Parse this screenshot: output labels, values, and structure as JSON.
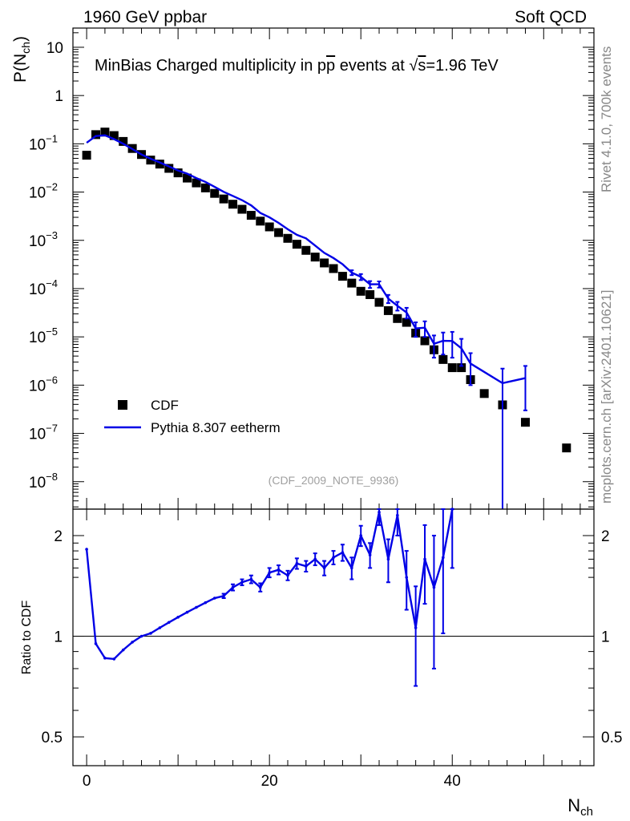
{
  "header": {
    "left": "1960 GeV ppbar",
    "right": "Soft QCD"
  },
  "side": {
    "rivet": "Rivet 4.1.0,  700k events",
    "mcplots": "mcplots.cern.ch [arXiv:2401.10621]"
  },
  "chart_data": [
    {
      "id": "main",
      "type": "scatter",
      "title_parts": {
        "before": "MinBias Charged multiplicity in p",
        "pbar": "p",
        "mid": " events at ",
        "root": "√",
        "s": "s",
        "after": "=1.96 TeV"
      },
      "ylabel_main": "P(N",
      "ylabel_sub": "ch",
      "ylabel_close": ")",
      "yscale": "log",
      "ylim": [
        2.7e-09,
        25
      ],
      "xlim": [
        -1.5,
        55.5
      ],
      "y_ticks": [
        {
          "value": 10,
          "base": "10",
          "exp": ""
        },
        {
          "value": 1,
          "base": "1",
          "exp": ""
        },
        {
          "value": 0.1,
          "base": "10",
          "exp": "−1"
        },
        {
          "value": 0.01,
          "base": "10",
          "exp": "−2"
        },
        {
          "value": 0.001,
          "base": "10",
          "exp": "−3"
        },
        {
          "value": 0.0001,
          "base": "10",
          "exp": "−4"
        },
        {
          "value": 1e-05,
          "base": "10",
          "exp": "−5"
        },
        {
          "value": 1e-06,
          "base": "10",
          "exp": "−6"
        },
        {
          "value": 1e-07,
          "base": "10",
          "exp": "−7"
        },
        {
          "value": 1e-08,
          "base": "10",
          "exp": "−8"
        }
      ],
      "watermark": "(CDF_2009_NOTE_9936)",
      "legend_position": "bottom-left",
      "series": [
        {
          "name": "CDF",
          "color": "#000000",
          "marker": "square",
          "x": [
            0,
            1,
            2,
            3,
            4,
            5,
            6,
            7,
            8,
            9,
            10,
            11,
            12,
            13,
            14,
            15,
            16,
            17,
            18,
            19,
            20,
            21,
            22,
            23,
            24,
            25,
            26,
            27,
            28,
            29,
            30,
            31,
            32,
            33,
            34,
            35,
            36,
            37,
            38,
            39,
            40,
            41,
            42,
            43.5,
            45.5,
            48,
            52.5
          ],
          "y": [
            0.058,
            0.155,
            0.175,
            0.148,
            0.112,
            0.08,
            0.06,
            0.046,
            0.038,
            0.031,
            0.025,
            0.0195,
            0.0155,
            0.0122,
            0.0094,
            0.0072,
            0.0056,
            0.0044,
            0.0033,
            0.0025,
            0.0019,
            0.00145,
            0.0011,
            0.00083,
            0.00062,
            0.00045,
            0.00034,
            0.00026,
            0.00018,
            0.00013,
            8.8e-05,
            7.5e-05,
            5.2e-05,
            3.5e-05,
            2.4e-05,
            2e-05,
            1.2e-05,
            8.3e-06,
            5.4e-06,
            3.4e-06,
            2.3e-06,
            2.3e-06,
            1.3e-06,
            6.7e-07,
            3.9e-07,
            1.7e-07,
            5e-08
          ]
        },
        {
          "name": "Pythia 8.307 eetherm",
          "color": "#0000e6",
          "marker": "line",
          "x": [
            0,
            1,
            2,
            3,
            4,
            5,
            6,
            7,
            8,
            9,
            10,
            11,
            12,
            13,
            14,
            15,
            16,
            17,
            18,
            19,
            20,
            21,
            22,
            23,
            24,
            25,
            26,
            27,
            28,
            29,
            30,
            31,
            32,
            33,
            34,
            35,
            36,
            37,
            38,
            39,
            40,
            41,
            42,
            45.5,
            48
          ],
          "y": [
            0.105,
            0.145,
            0.15,
            0.125,
            0.1,
            0.078,
            0.06,
            0.049,
            0.041,
            0.034,
            0.028,
            0.024,
            0.0195,
            0.0162,
            0.0128,
            0.0101,
            0.0083,
            0.0068,
            0.0053,
            0.0037,
            0.003,
            0.0023,
            0.0017,
            0.0013,
            0.0011,
            0.00078,
            0.00055,
            0.00043,
            0.00032,
            0.000215,
            0.000175,
            0.000123,
            0.000123,
            6.2e-05,
            4.4e-05,
            3.2e-05,
            1.5e-05,
            1.55e-05,
            7.2e-06,
            8.3e-06,
            8.2e-06,
            5.8e-06,
            2.8e-06,
            1.1e-06,
            1.4e-06
          ],
          "yerr": [
            0,
            0,
            0,
            0,
            0,
            0,
            0,
            0,
            0,
            0,
            0,
            0,
            0,
            0,
            0,
            0,
            0,
            0,
            0,
            0,
            0,
            0,
            0,
            0,
            0,
            0,
            0,
            0,
            0,
            2.5e-05,
            2.5e-05,
            2e-05,
            1.8e-05,
            1.2e-05,
            9e-06,
            8e-06,
            5e-06,
            5.5e-06,
            3.5e-06,
            4e-06,
            4.5e-06,
            3.3e-06,
            1.8e-06,
            1.1e-06,
            1.1e-06
          ]
        }
      ]
    },
    {
      "id": "ratio",
      "type": "line",
      "ylabel": "Ratio to CDF",
      "xlabel_main": "N",
      "xlabel_sub": "ch",
      "yscale": "log",
      "ylim": [
        0.41,
        2.4
      ],
      "xlim": [
        -1.5,
        55.5
      ],
      "reference_line": 1,
      "y_ticks": [
        {
          "value": 2,
          "label": "2"
        },
        {
          "value": 1,
          "label": "1"
        },
        {
          "value": 0.5,
          "label": "0.5"
        }
      ],
      "x_ticks": [
        {
          "value": 0,
          "label": "0"
        },
        {
          "value": 20,
          "label": "20"
        },
        {
          "value": 40,
          "label": "40"
        }
      ],
      "series": [
        {
          "name": "Pythia 8.307 eetherm / CDF",
          "color": "#0000e6",
          "x": [
            0,
            1,
            2,
            3,
            4,
            5,
            6,
            7,
            8,
            9,
            10,
            11,
            12,
            13,
            14,
            15,
            16,
            17,
            18,
            19,
            20,
            21,
            22,
            23,
            24,
            25,
            26,
            27,
            28,
            29,
            30,
            31,
            32,
            33,
            34,
            35,
            36,
            37,
            38,
            39,
            40
          ],
          "y": [
            1.82,
            0.95,
            0.86,
            0.855,
            0.91,
            0.96,
            1.0,
            1.02,
            1.06,
            1.1,
            1.14,
            1.18,
            1.22,
            1.26,
            1.3,
            1.32,
            1.4,
            1.45,
            1.48,
            1.4,
            1.55,
            1.58,
            1.52,
            1.65,
            1.62,
            1.7,
            1.6,
            1.72,
            1.78,
            1.6,
            2.0,
            1.75,
            2.35,
            1.7,
            2.3,
            1.5,
            1.06,
            1.7,
            1.4,
            1.72,
            2.4
          ],
          "yerr": [
            0,
            0,
            0,
            0,
            0,
            0,
            0,
            0,
            0,
            0,
            0,
            0,
            0,
            0,
            0,
            0.02,
            0.03,
            0.03,
            0.04,
            0.04,
            0.05,
            0.05,
            0.05,
            0.06,
            0.06,
            0.07,
            0.08,
            0.08,
            0.1,
            0.12,
            0.14,
            0.15,
            0.2,
            0.25,
            0.3,
            0.3,
            0.35,
            0.45,
            0.6,
            0.7,
            0.8
          ]
        }
      ]
    }
  ]
}
